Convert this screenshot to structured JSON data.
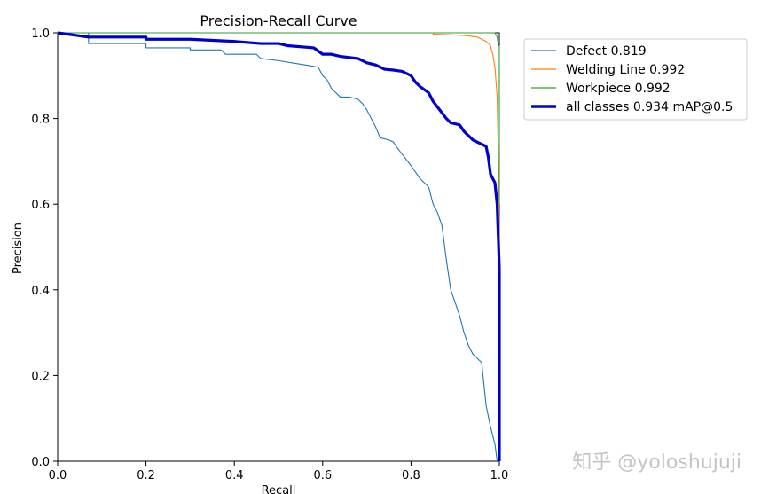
{
  "chart_data": {
    "type": "line",
    "title": "Precision-Recall Curve",
    "xlabel": "Recall",
    "ylabel": "Precision",
    "xlim": [
      0.0,
      1.0
    ],
    "ylim": [
      0.0,
      1.0
    ],
    "xticks": [
      "0.0",
      "0.2",
      "0.4",
      "0.6",
      "0.8",
      "1.0"
    ],
    "yticks": [
      "0.0",
      "0.2",
      "0.4",
      "0.6",
      "0.8",
      "1.0"
    ],
    "grid": false,
    "legend_position": "outside-top-right",
    "series": [
      {
        "name": "Defect 0.819",
        "color": "#1f77b4",
        "points": [
          [
            0,
            1
          ],
          [
            0.07,
            1
          ],
          [
            0.07,
            0.975
          ],
          [
            0.2,
            0.975
          ],
          [
            0.2,
            0.965
          ],
          [
            0.3,
            0.965
          ],
          [
            0.3,
            0.96
          ],
          [
            0.37,
            0.96
          ],
          [
            0.38,
            0.95
          ],
          [
            0.45,
            0.95
          ],
          [
            0.46,
            0.94
          ],
          [
            0.5,
            0.935
          ],
          [
            0.53,
            0.93
          ],
          [
            0.56,
            0.925
          ],
          [
            0.59,
            0.92
          ],
          [
            0.6,
            0.9
          ],
          [
            0.61,
            0.89
          ],
          [
            0.62,
            0.87
          ],
          [
            0.64,
            0.85
          ],
          [
            0.66,
            0.85
          ],
          [
            0.68,
            0.845
          ],
          [
            0.69,
            0.835
          ],
          [
            0.7,
            0.82
          ],
          [
            0.71,
            0.8
          ],
          [
            0.72,
            0.78
          ],
          [
            0.73,
            0.755
          ],
          [
            0.75,
            0.75
          ],
          [
            0.76,
            0.745
          ],
          [
            0.77,
            0.73
          ],
          [
            0.8,
            0.69
          ],
          [
            0.82,
            0.66
          ],
          [
            0.84,
            0.64
          ],
          [
            0.85,
            0.6
          ],
          [
            0.86,
            0.58
          ],
          [
            0.87,
            0.55
          ],
          [
            0.88,
            0.47
          ],
          [
            0.89,
            0.4
          ],
          [
            0.9,
            0.37
          ],
          [
            0.91,
            0.34
          ],
          [
            0.92,
            0.3
          ],
          [
            0.93,
            0.27
          ],
          [
            0.94,
            0.25
          ],
          [
            0.96,
            0.23
          ],
          [
            0.97,
            0.13
          ],
          [
            0.98,
            0.08
          ],
          [
            0.99,
            0.04
          ],
          [
            0.995,
            0.0
          ]
        ]
      },
      {
        "name": "Welding Line 0.992",
        "color": "#ff7f0e",
        "points": [
          [
            0,
            1
          ],
          [
            0.85,
            1
          ],
          [
            0.85,
            0.997
          ],
          [
            0.92,
            0.994
          ],
          [
            0.95,
            0.99
          ],
          [
            0.96,
            0.985
          ],
          [
            0.97,
            0.98
          ],
          [
            0.98,
            0.97
          ],
          [
            0.985,
            0.95
          ],
          [
            0.99,
            0.92
          ],
          [
            0.995,
            0.85
          ],
          [
            0.997,
            0.75
          ],
          [
            0.999,
            0.6
          ],
          [
            1.0,
            0.5
          ]
        ]
      },
      {
        "name": "Workpiece 0.992",
        "color": "#2ca02c",
        "points": [
          [
            0,
            1
          ],
          [
            0.99,
            1
          ],
          [
            0.995,
            0.99
          ],
          [
            0.998,
            0.97
          ],
          [
            1.0,
            0.97
          ],
          [
            1.0,
            0.9
          ],
          [
            1.0,
            0.8
          ],
          [
            1.0,
            0.7
          ],
          [
            1.0,
            0.6
          ]
        ]
      },
      {
        "name": "all classes 0.934 mAP@0.5",
        "color": "#0000cc",
        "points": [
          [
            0,
            1
          ],
          [
            0.07,
            0.99
          ],
          [
            0.2,
            0.99
          ],
          [
            0.2,
            0.985
          ],
          [
            0.3,
            0.985
          ],
          [
            0.4,
            0.98
          ],
          [
            0.46,
            0.975
          ],
          [
            0.5,
            0.975
          ],
          [
            0.52,
            0.97
          ],
          [
            0.58,
            0.965
          ],
          [
            0.6,
            0.95
          ],
          [
            0.62,
            0.95
          ],
          [
            0.64,
            0.945
          ],
          [
            0.68,
            0.94
          ],
          [
            0.7,
            0.93
          ],
          [
            0.72,
            0.925
          ],
          [
            0.74,
            0.915
          ],
          [
            0.76,
            0.913
          ],
          [
            0.78,
            0.91
          ],
          [
            0.8,
            0.9
          ],
          [
            0.81,
            0.885
          ],
          [
            0.82,
            0.875
          ],
          [
            0.84,
            0.86
          ],
          [
            0.85,
            0.84
          ],
          [
            0.88,
            0.8
          ],
          [
            0.89,
            0.79
          ],
          [
            0.91,
            0.785
          ],
          [
            0.92,
            0.77
          ],
          [
            0.93,
            0.76
          ],
          [
            0.94,
            0.75
          ],
          [
            0.95,
            0.745
          ],
          [
            0.97,
            0.735
          ],
          [
            0.975,
            0.71
          ],
          [
            0.98,
            0.67
          ],
          [
            0.99,
            0.65
          ],
          [
            0.995,
            0.6
          ],
          [
            1.0,
            0.45
          ],
          [
            1.0,
            0.0
          ]
        ]
      }
    ]
  },
  "watermark": "知乎 @yoloshujuji"
}
